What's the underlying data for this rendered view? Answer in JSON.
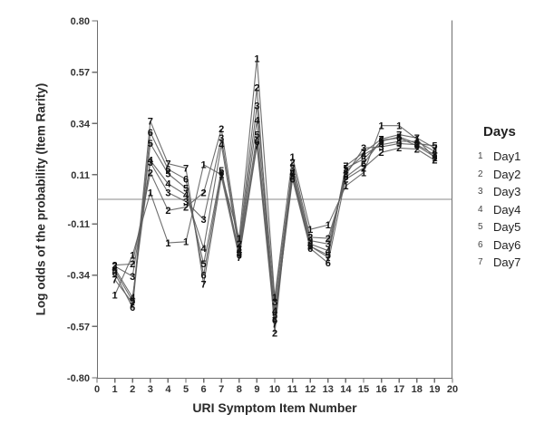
{
  "chart_data": {
    "type": "line",
    "title": "",
    "xlabel": "URI Symptom Item Number",
    "ylabel": "Log odds of the probability (Item Rarity)",
    "x": [
      1,
      2,
      3,
      4,
      5,
      6,
      7,
      8,
      9,
      10,
      11,
      12,
      13,
      14,
      15,
      16,
      17,
      18,
      19
    ],
    "xlim": [
      0,
      20
    ],
    "ylim": [
      -0.8,
      0.8
    ],
    "yticks": [
      0.8,
      0.57,
      0.34,
      0.11,
      -0.11,
      -0.34,
      -0.57,
      -0.8
    ],
    "xtick_step": 1,
    "refline_y": 0,
    "grid": false,
    "series": [
      {
        "name": "Day1",
        "marker": "1",
        "values": [
          -0.43,
          -0.25,
          0.03,
          -0.195,
          -0.19,
          0.155,
          0.11,
          -0.175,
          0.63,
          -0.44,
          0.19,
          -0.135,
          -0.115,
          0.06,
          0.12,
          0.33,
          0.33,
          0.27,
          0.185
        ]
      },
      {
        "name": "Day2",
        "marker": "2",
        "values": [
          -0.295,
          -0.29,
          0.12,
          -0.05,
          -0.035,
          0.03,
          0.315,
          -0.2,
          0.5,
          -0.6,
          0.165,
          -0.17,
          -0.175,
          0.09,
          0.14,
          0.21,
          0.23,
          0.225,
          0.175
        ]
      },
      {
        "name": "Day3",
        "marker": "3",
        "values": [
          -0.3,
          -0.345,
          0.165,
          0.03,
          -0.01,
          -0.09,
          0.275,
          -0.22,
          0.42,
          -0.46,
          0.14,
          -0.185,
          -0.2,
          0.11,
          0.23,
          0.235,
          0.25,
          0.245,
          0.2
        ]
      },
      {
        "name": "Day4",
        "marker": "4",
        "values": [
          -0.31,
          -0.44,
          0.175,
          0.07,
          0.02,
          -0.22,
          0.245,
          -0.23,
          0.355,
          -0.5,
          0.12,
          -0.2,
          -0.23,
          0.125,
          0.2,
          0.245,
          0.26,
          0.26,
          0.215
        ]
      },
      {
        "name": "Day5",
        "marker": "5",
        "values": [
          -0.32,
          -0.455,
          0.25,
          0.115,
          0.05,
          -0.29,
          0.13,
          -0.24,
          0.29,
          -0.52,
          0.105,
          -0.21,
          -0.25,
          0.14,
          0.18,
          0.26,
          0.28,
          0.25,
          0.24
        ]
      },
      {
        "name": "Day6",
        "marker": "6",
        "values": [
          -0.33,
          -0.485,
          0.3,
          0.135,
          0.09,
          -0.34,
          0.12,
          -0.25,
          0.26,
          -0.54,
          0.09,
          -0.22,
          -0.285,
          0.1,
          0.16,
          0.265,
          0.275,
          0.24,
          0.19
        ]
      },
      {
        "name": "Day7",
        "marker": "7",
        "values": [
          -0.36,
          -0.465,
          0.35,
          0.16,
          0.14,
          -0.38,
          0.1,
          -0.26,
          0.24,
          -0.56,
          0.115,
          -0.21,
          -0.26,
          0.15,
          0.21,
          0.27,
          0.29,
          0.275,
          0.23
        ]
      }
    ],
    "legend": {
      "title": "Days",
      "position": "right",
      "entries": [
        {
          "marker": "1",
          "label": "Day1"
        },
        {
          "marker": "2",
          "label": "Day2"
        },
        {
          "marker": "3",
          "label": "Day3"
        },
        {
          "marker": "4",
          "label": "Day4"
        },
        {
          "marker": "5",
          "label": "Day5"
        },
        {
          "marker": "6",
          "label": "Day6"
        },
        {
          "marker": "7",
          "label": "Day7"
        }
      ]
    }
  }
}
